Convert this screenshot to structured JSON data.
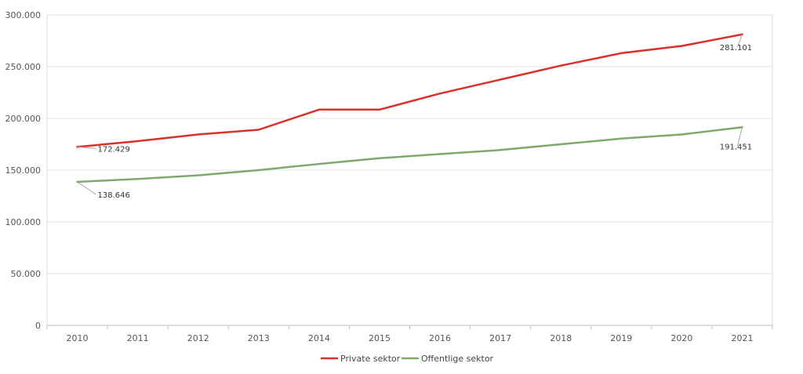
{
  "chart_data": {
    "type": "line",
    "title": "",
    "xlabel": "",
    "ylabel": "",
    "x": [
      "2010",
      "2011",
      "2012",
      "2013",
      "2014",
      "2015",
      "2016",
      "2017",
      "2018",
      "2019",
      "2020",
      "2021"
    ],
    "ylim": [
      0,
      300000
    ],
    "yticks": [
      0,
      50000,
      100000,
      150000,
      200000,
      250000,
      300000
    ],
    "ytick_labels": [
      "0",
      "50.000",
      "100.000",
      "150.000",
      "200.000",
      "250.000",
      "300.000"
    ],
    "grid": true,
    "legend_position": "bottom",
    "series": [
      {
        "name": "Private sektor",
        "color": "#d9302c",
        "values": [
          172429,
          178000,
          184500,
          189000,
          208500,
          208500,
          224000,
          237500,
          251000,
          263000,
          270000,
          281101
        ]
      },
      {
        "name": "Offentlige sektor",
        "color": "#7ea86e",
        "values": [
          138646,
          141500,
          145000,
          150000,
          156000,
          161500,
          165500,
          169500,
          175000,
          180500,
          184500,
          191451
        ]
      }
    ],
    "annotations": [
      {
        "series": 0,
        "point": 0,
        "text": "172.429"
      },
      {
        "series": 0,
        "point": 11,
        "text": "281.101"
      },
      {
        "series": 1,
        "point": 0,
        "text": "138.646"
      },
      {
        "series": 1,
        "point": 11,
        "text": "191.451"
      }
    ]
  }
}
